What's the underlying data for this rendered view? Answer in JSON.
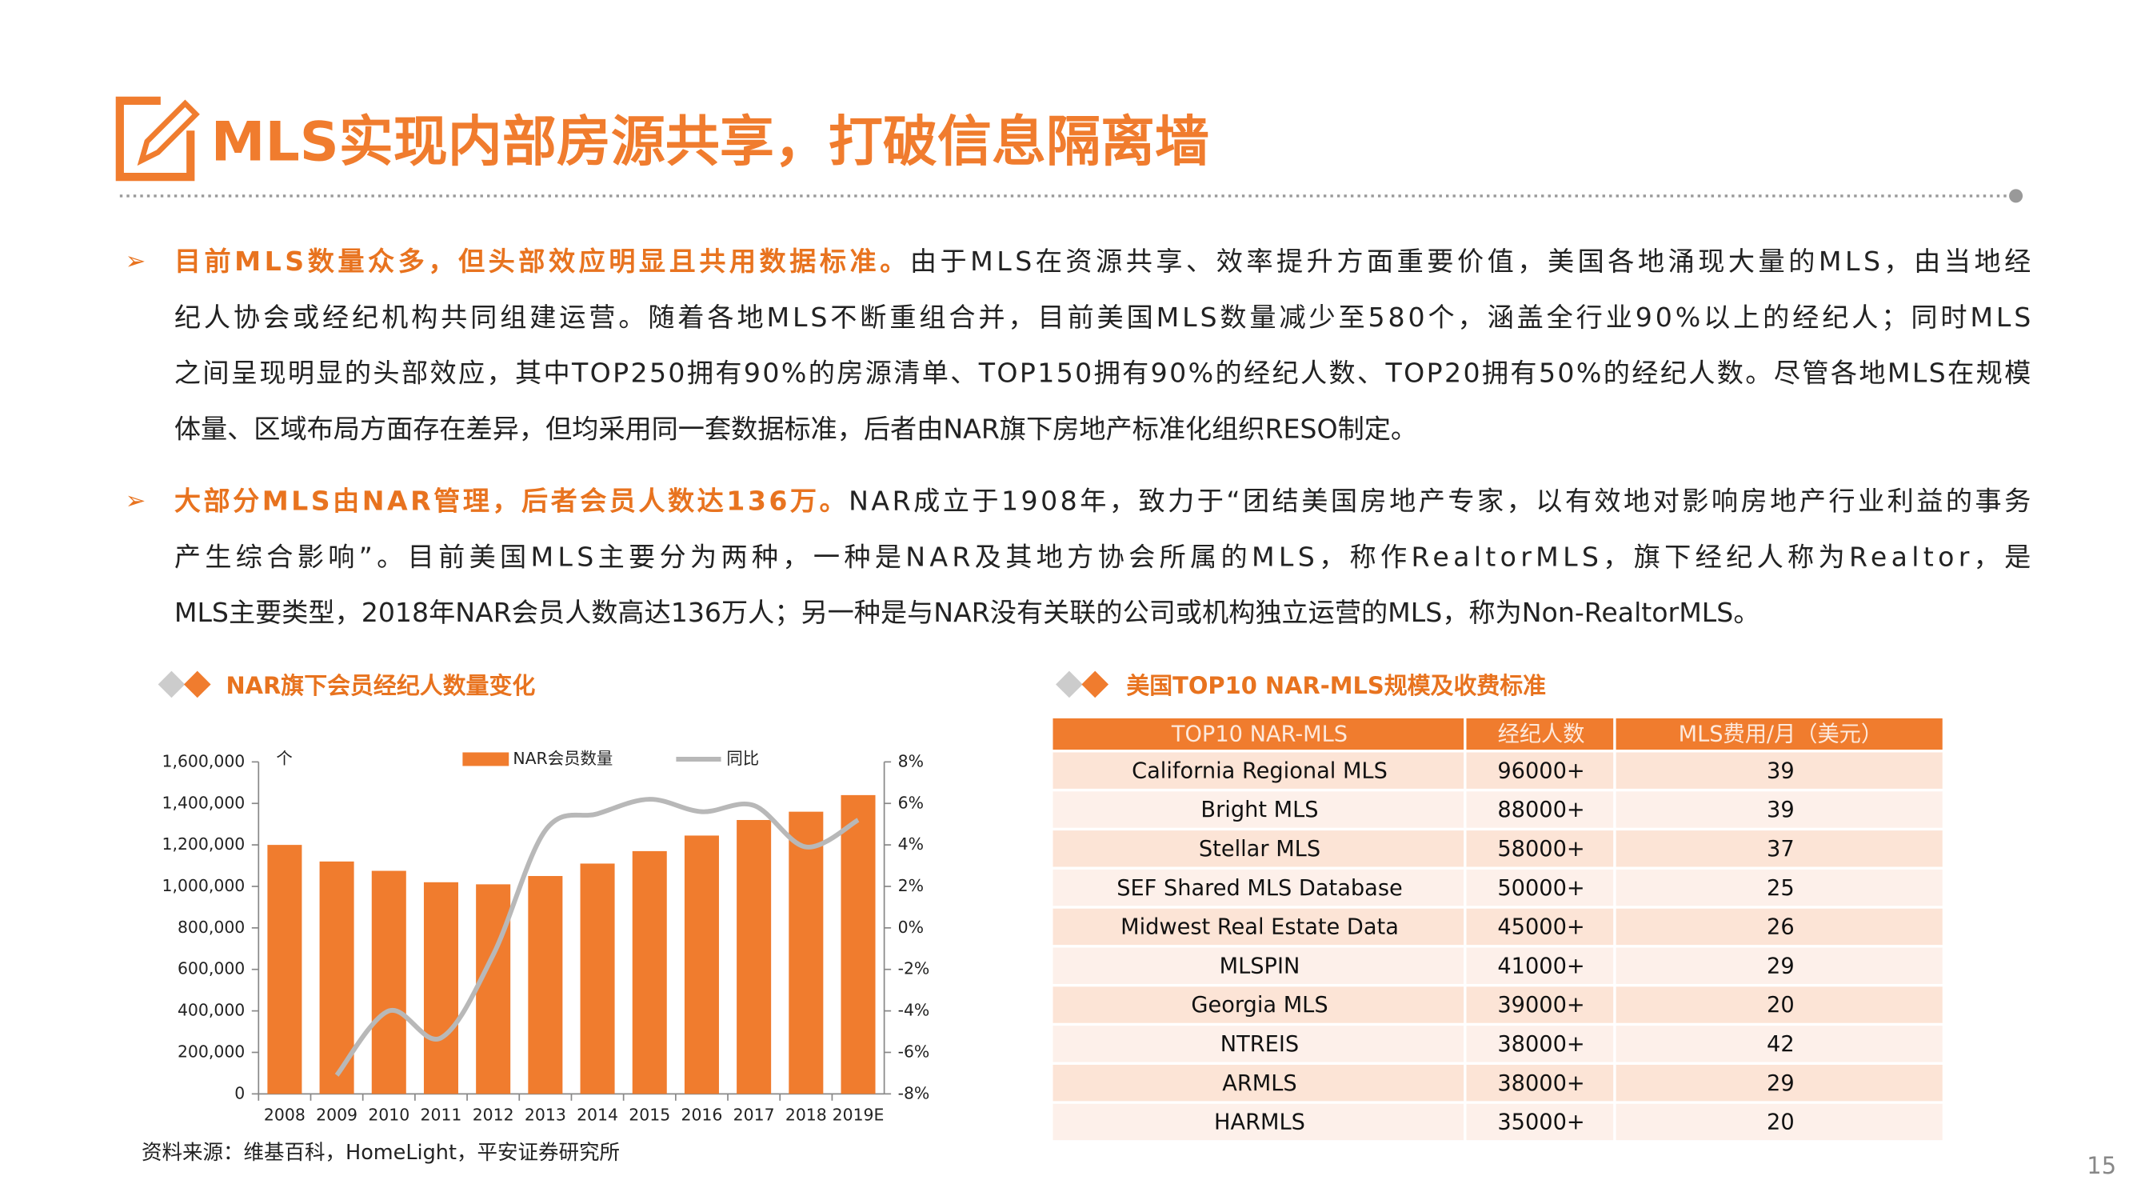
{
  "title": "MLS实现内部房源共享，打破信息隔离墙",
  "bullets": [
    {
      "lead": "目前MLS数量众多，但头部效应明显且共用数据标准。",
      "lines": [
        "由于MLS在资源共享、效率提升方面重要价值，美国各地涌现大量的MLS，由当地经",
        "纪人协会或经纪机构共同组建运营。随着各地MLS不断重组合并，目前美国MLS数量减少至580个，涵盖全行业90%以上的经纪人；同时MLS",
        "之间呈现明显的头部效应，其中TOP250拥有90%的房源清单、TOP150拥有90%的经纪人数、TOP20拥有50%的经纪人数。尽管各地MLS在规模",
        "体量、区域布局方面存在差异，但均采用同一套数据标准，后者由NAR旗下房地产标准化组织RESO制定。"
      ]
    },
    {
      "lead": "大部分MLS由NAR管理，后者会员人数达136万。",
      "lines": [
        "NAR成立于1908年，致力于“团结美国房地产专家，以有效地对影响房地产行业利益的事务",
        "产生综合影响”。目前美国MLS主要分为两种，一种是NAR及其地方协会所属的MLS，称作RealtorMLS，旗下经纪人称为Realtor，是",
        "MLS主要类型，2018年NAR会员人数高达136万人；另一种是与NAR没有关联的公司或机构独立运营的MLS，称为Non-RealtorMLS。"
      ]
    }
  ],
  "chart_data": {
    "type": "bar",
    "title": "NAR旗下会员经纪人数量变化",
    "y_unit": "个",
    "categories": [
      "2008",
      "2009",
      "2010",
      "2011",
      "2012",
      "2013",
      "2014",
      "2015",
      "2016",
      "2017",
      "2018",
      "2019E"
    ],
    "series": [
      {
        "name": "NAR会员数量",
        "color": "#f07c2e",
        "values": [
          1200000,
          1120000,
          1075000,
          1020000,
          1010000,
          1050000,
          1110000,
          1170000,
          1245000,
          1320000,
          1360000,
          1440000
        ]
      },
      {
        "name": "同比",
        "color": "#b8b8b8",
        "axis": "y2",
        "type": "line",
        "values": [
          null,
          -7.1,
          -4.0,
          -5.3,
          -1.3,
          4.7,
          5.5,
          6.2,
          5.6,
          5.9,
          3.9,
          5.2
        ]
      }
    ],
    "ylim": [
      0,
      1600000
    ],
    "yticks": [
      0,
      {
        "value": 200000,
        "label": "200,000"
      },
      {
        "value": 400000,
        "label": "400,000"
      },
      {
        "value": 600000,
        "label": "600,000"
      },
      {
        "value": 800000,
        "label": "800,000"
      },
      {
        "value": 1000000,
        "label": "1,000,000"
      },
      {
        "value": 1200000,
        "label": "1,200,000"
      },
      {
        "value": 1400000,
        "label": "1,400,000"
      },
      {
        "value": 1600000,
        "label": "1,600,000"
      }
    ],
    "y2lim": [
      -8,
      8
    ],
    "y2ticks": [
      {
        "value": -8,
        "label": "-8%"
      },
      {
        "value": -6,
        "label": "-6%"
      },
      {
        "value": -4,
        "label": "-4%"
      },
      {
        "value": -2,
        "label": "-2%"
      },
      {
        "value": 0,
        "label": "0%"
      },
      {
        "value": 2,
        "label": "2%"
      },
      {
        "value": 4,
        "label": "4%"
      },
      {
        "value": 6,
        "label": "6%"
      },
      {
        "value": 8,
        "label": "8%"
      }
    ],
    "legend": "top"
  },
  "table": {
    "title": "美国TOP10 NAR-MLS规模及收费标准",
    "header": [
      "TOP10 NAR-MLS",
      "经纪人数",
      "MLS费用/月（美元）"
    ],
    "rows": [
      [
        "California Regional MLS",
        "96000+",
        39
      ],
      [
        "Bright MLS",
        "88000+",
        39
      ],
      [
        "Stellar MLS",
        "58000+",
        37
      ],
      [
        "SEF Shared MLS Database",
        "50000+",
        25
      ],
      [
        "Midwest Real Estate Data",
        "45000+",
        26
      ],
      [
        "MLSPIN",
        "41000+",
        29
      ],
      [
        "Georgia MLS",
        "39000+",
        20
      ],
      [
        "NTREIS",
        "38000+",
        42
      ],
      [
        "ARMLS",
        "38000+",
        29
      ],
      [
        "HARMLS",
        "35000+",
        20
      ]
    ]
  },
  "source": "资料来源：维基百科，HomeLight，平安证券研究所",
  "page_number": "15"
}
